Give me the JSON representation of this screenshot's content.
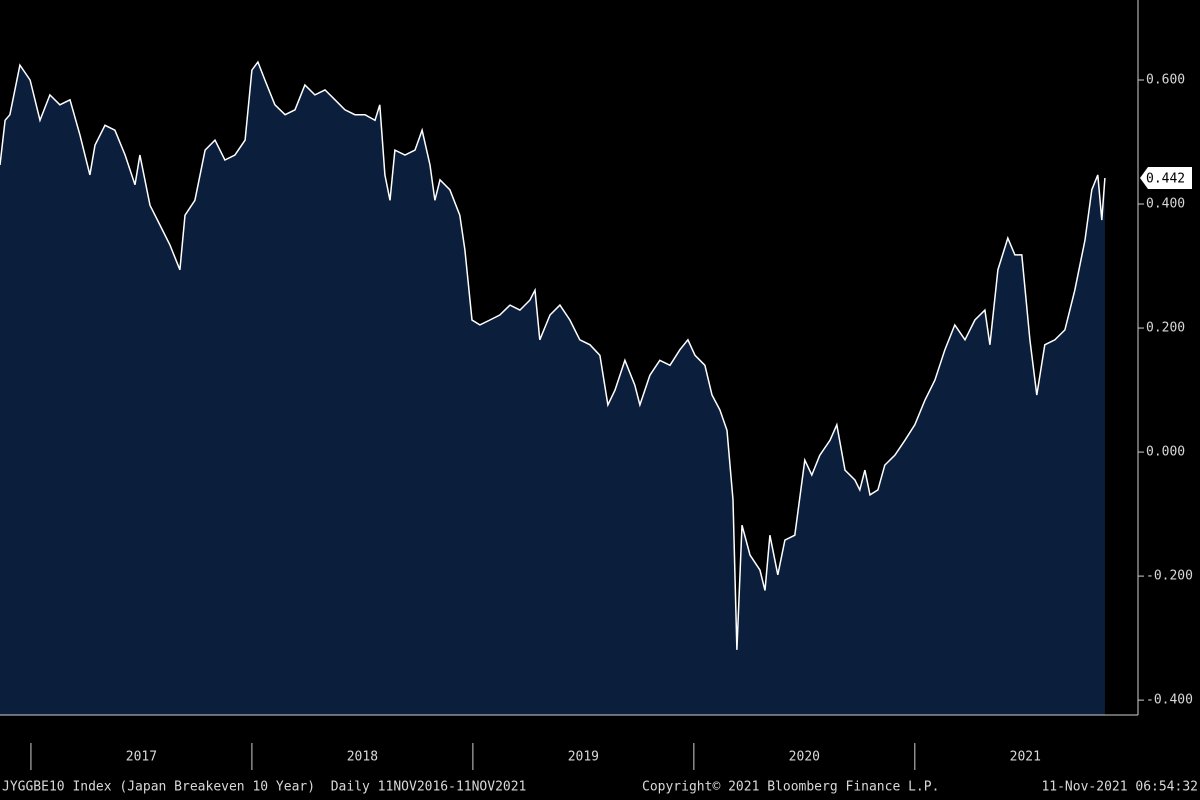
{
  "chart_data": {
    "type": "area",
    "color": "#0b1f3d",
    "line_color": "#ffffff",
    "x": [
      2016.86,
      2016.883,
      2016.905,
      2016.95,
      2016.996,
      2017.041,
      2017.086,
      2017.131,
      2017.177,
      2017.222,
      2017.267,
      2017.29,
      2017.335,
      2017.38,
      2017.426,
      2017.471,
      2017.493,
      2017.539,
      2017.584,
      2017.629,
      2017.674,
      2017.697,
      2017.742,
      2017.788,
      2017.833,
      2017.878,
      2017.923,
      2017.969,
      2018.0,
      2018.027,
      2018.059,
      2018.104,
      2018.15,
      2018.195,
      2018.24,
      2018.285,
      2018.331,
      2018.376,
      2018.421,
      2018.466,
      2018.512,
      2018.557,
      2018.579,
      2018.602,
      2018.625,
      2018.647,
      2018.693,
      2018.738,
      2018.77,
      2018.806,
      2018.828,
      2018.851,
      2018.896,
      2018.941,
      2018.964,
      2018.996,
      2019.032,
      2019.077,
      2019.122,
      2019.168,
      2019.213,
      2019.258,
      2019.281,
      2019.303,
      2019.349,
      2019.394,
      2019.439,
      2019.484,
      2019.53,
      2019.575,
      2019.611,
      2019.643,
      2019.688,
      2019.733,
      2019.756,
      2019.801,
      2019.846,
      2019.892,
      2019.937,
      2019.973,
      2020.005,
      2020.05,
      2020.082,
      2020.118,
      2020.15,
      2020.177,
      2020.195,
      2020.218,
      2020.254,
      2020.299,
      2020.322,
      2020.344,
      2020.38,
      2020.412,
      2020.457,
      2020.502,
      2020.534,
      2020.57,
      2020.616,
      2020.647,
      2020.684,
      2020.729,
      2020.751,
      2020.774,
      2020.797,
      2020.833,
      2020.864,
      2020.91,
      2020.955,
      2021.0,
      2021.046,
      2021.091,
      2021.136,
      2021.181,
      2021.227,
      2021.272,
      2021.317,
      2021.34,
      2021.376,
      2021.421,
      2021.453,
      2021.484,
      2021.521,
      2021.552,
      2021.588,
      2021.634,
      2021.679,
      2021.724,
      2021.77,
      2021.801,
      2021.828,
      2021.846,
      2021.86
    ],
    "values": [
      0.463,
      0.535,
      0.544,
      0.624,
      0.6,
      0.535,
      0.576,
      0.56,
      0.568,
      0.511,
      0.447,
      0.495,
      0.527,
      0.519,
      0.479,
      0.431,
      0.479,
      0.398,
      0.366,
      0.334,
      0.294,
      0.382,
      0.406,
      0.487,
      0.503,
      0.471,
      0.479,
      0.503,
      0.616,
      0.629,
      0.6,
      0.56,
      0.544,
      0.552,
      0.592,
      0.576,
      0.584,
      0.568,
      0.552,
      0.544,
      0.544,
      0.535,
      0.56,
      0.447,
      0.406,
      0.487,
      0.479,
      0.487,
      0.519,
      0.463,
      0.406,
      0.439,
      0.423,
      0.382,
      0.326,
      0.213,
      0.205,
      0.213,
      0.221,
      0.237,
      0.229,
      0.245,
      0.261,
      0.181,
      0.221,
      0.237,
      0.213,
      0.181,
      0.173,
      0.156,
      0.076,
      0.1,
      0.148,
      0.108,
      0.076,
      0.124,
      0.148,
      0.14,
      0.165,
      0.181,
      0.156,
      0.14,
      0.092,
      0.068,
      0.035,
      -0.077,
      -0.319,
      -0.118,
      -0.166,
      -0.19,
      -0.223,
      -0.134,
      -0.198,
      -0.142,
      -0.134,
      -0.013,
      -0.037,
      -0.005,
      0.019,
      0.044,
      -0.029,
      -0.045,
      -0.061,
      -0.029,
      -0.069,
      -0.061,
      -0.021,
      -0.005,
      0.019,
      0.044,
      0.084,
      0.116,
      0.165,
      0.205,
      0.181,
      0.213,
      0.229,
      0.173,
      0.294,
      0.345,
      0.318,
      0.318,
      0.181,
      0.092,
      0.173,
      0.181,
      0.197,
      0.261,
      0.342,
      0.423,
      0.447,
      0.374,
      0.442
    ],
    "xlim": [
      2016.86,
      2022.01
    ],
    "xticks": [
      {
        "value": 2017,
        "label": "2017"
      },
      {
        "value": 2018,
        "label": "2018"
      },
      {
        "value": 2019,
        "label": "2019"
      },
      {
        "value": 2020,
        "label": "2020"
      },
      {
        "value": 2021,
        "label": "2021"
      }
    ],
    "ylim": [
      -0.424,
      0.729
    ],
    "yticks": [
      {
        "value": -0.4,
        "label": "-0.400"
      },
      {
        "value": -0.2,
        "label": "-0.200"
      },
      {
        "value": 0,
        "label": "0.000"
      },
      {
        "value": 0.2,
        "label": "0.200"
      },
      {
        "value": 0.4,
        "label": "0.400"
      },
      {
        "value": 0.6,
        "label": "0.600"
      }
    ],
    "source": "JYGGBE10 Index (Japan Breakeven 10 Year)  Daily 11NOV2016-11NOV2021",
    "copyright": "Copyright© 2021 Bloomberg Finance L.P.",
    "timestamp": "11-Nov-2021 06:54:32"
  }
}
